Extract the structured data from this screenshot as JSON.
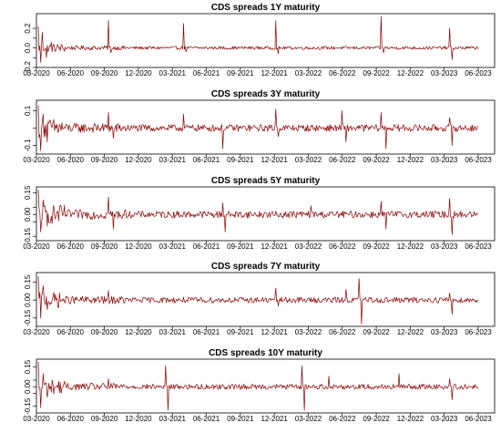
{
  "chart_data": [
    {
      "type": "line",
      "title": "CDS spreads 1Y maturity",
      "xlabel": "",
      "ylabel": "",
      "ylim": [
        -0.2,
        0.35
      ],
      "yticks": [
        -0.2,
        -0.1,
        0.0,
        0.1,
        0.2
      ],
      "ytick_labels": [
        "-0.2",
        "",
        "0.0",
        "",
        "0.2"
      ],
      "xticks": [
        "03-2020",
        "06-2020",
        "09-2020",
        "12-2020",
        "03-2021",
        "06-2021",
        "09-2021",
        "12-2021",
        "03-2022",
        "06-2022",
        "09-2022",
        "12-2022",
        "03-2023",
        "06-2023"
      ],
      "grid": false,
      "series_color": "#8b0000",
      "baseline_noise": 0.02,
      "spikes": [
        [
          0.0,
          0.22
        ],
        [
          0.005,
          -0.15
        ],
        [
          0.01,
          0.16
        ],
        [
          0.018,
          -0.1
        ],
        [
          0.03,
          0.06
        ],
        [
          0.16,
          0.28
        ],
        [
          0.165,
          -0.05
        ],
        [
          0.33,
          0.25
        ],
        [
          0.336,
          -0.04
        ],
        [
          0.54,
          0.28
        ],
        [
          0.545,
          -0.06
        ],
        [
          0.78,
          0.32
        ],
        [
          0.785,
          -0.05
        ],
        [
          0.935,
          0.2
        ],
        [
          0.94,
          -0.12
        ]
      ]
    },
    {
      "type": "line",
      "title": "CDS spreads 3Y maturity",
      "xlabel": "",
      "ylabel": "",
      "ylim": [
        -0.15,
        0.16
      ],
      "yticks": [
        -0.1,
        0.0,
        0.1
      ],
      "ytick_labels": [
        "-0.1",
        "",
        "0.1"
      ],
      "xticks": [
        "03-2020",
        "06-2020",
        "09-2020",
        "12-2020",
        "03-2021",
        "06-2021",
        "09-2021",
        "12-2021",
        "03-2022",
        "06-2022",
        "09-2022",
        "12-2022",
        "03-2023",
        "06-2023"
      ],
      "grid": false,
      "series_color": "#8b0000",
      "baseline_noise": 0.025,
      "spikes": [
        [
          0.0,
          0.13
        ],
        [
          0.005,
          -0.13
        ],
        [
          0.012,
          0.08
        ],
        [
          0.02,
          -0.08
        ],
        [
          0.16,
          0.09
        ],
        [
          0.17,
          -0.06
        ],
        [
          0.33,
          0.08
        ],
        [
          0.42,
          -0.12
        ],
        [
          0.54,
          0.11
        ],
        [
          0.545,
          -0.05
        ],
        [
          0.69,
          0.1
        ],
        [
          0.7,
          -0.08
        ],
        [
          0.78,
          0.09
        ],
        [
          0.79,
          -0.12
        ],
        [
          0.935,
          0.06
        ],
        [
          0.94,
          -0.1
        ]
      ]
    },
    {
      "type": "line",
      "title": "CDS spreads 5Y maturity",
      "xlabel": "",
      "ylabel": "",
      "ylim": [
        -0.18,
        0.19
      ],
      "yticks": [
        -0.15,
        -0.05,
        0.0,
        0.05,
        0.15
      ],
      "ytick_labels": [
        "-0.15",
        "",
        "0.00",
        "",
        "0.15"
      ],
      "xticks": [
        "03-2020",
        "06-2020",
        "09-2020",
        "12-2020",
        "03-2021",
        "06-2021",
        "09-2021",
        "12-2021",
        "03-2022",
        "06-2022",
        "09-2022",
        "12-2022",
        "03-2023",
        "06-2023"
      ],
      "grid": false,
      "series_color": "#8b0000",
      "baseline_noise": 0.03,
      "spikes": [
        [
          0.0,
          0.17
        ],
        [
          0.005,
          -0.12
        ],
        [
          0.012,
          0.1
        ],
        [
          0.02,
          -0.08
        ],
        [
          0.16,
          0.12
        ],
        [
          0.17,
          -0.1
        ],
        [
          0.42,
          0.08
        ],
        [
          0.425,
          -0.12
        ],
        [
          0.62,
          0.06
        ],
        [
          0.78,
          0.09
        ],
        [
          0.79,
          -0.1
        ],
        [
          0.935,
          0.11
        ],
        [
          0.94,
          -0.14
        ]
      ]
    },
    {
      "type": "line",
      "title": "CDS spreads 7Y maturity",
      "xlabel": "",
      "ylabel": "",
      "ylim": [
        -0.22,
        0.23
      ],
      "yticks": [
        -0.15,
        0.0,
        0.15
      ],
      "ytick_labels": [
        "-0.15",
        "0.00",
        "0.15"
      ],
      "xticks": [
        "03-2020",
        "06-2020",
        "09-2020",
        "12-2020",
        "03-2021",
        "06-2021",
        "09-2021",
        "12-2021",
        "03-2022",
        "06-2022",
        "09-2022",
        "12-2022",
        "03-2023",
        "06-2023"
      ],
      "grid": false,
      "series_color": "#8b0000",
      "baseline_noise": 0.03,
      "spikes": [
        [
          0.0,
          0.2
        ],
        [
          0.005,
          -0.15
        ],
        [
          0.012,
          0.12
        ],
        [
          0.02,
          -0.08
        ],
        [
          0.16,
          0.08
        ],
        [
          0.54,
          0.1
        ],
        [
          0.545,
          -0.05
        ],
        [
          0.7,
          0.09
        ],
        [
          0.73,
          0.18
        ],
        [
          0.735,
          -0.2
        ],
        [
          0.935,
          0.06
        ],
        [
          0.94,
          -0.12
        ]
      ]
    },
    {
      "type": "line",
      "title": "CDS spreads 10Y maturity",
      "xlabel": "",
      "ylabel": "",
      "ylim": [
        -0.2,
        0.21
      ],
      "yticks": [
        -0.15,
        -0.05,
        0.0,
        0.05,
        0.15
      ],
      "ytick_labels": [
        "-0.15",
        "",
        "0.00",
        "",
        "0.15"
      ],
      "xticks": [
        "03-2020",
        "06-2020",
        "09-2020",
        "12-2020",
        "03-2021",
        "06-2021",
        "09-2021",
        "12-2021",
        "03-2022",
        "06-2022",
        "09-2022",
        "12-2022",
        "03-2023",
        "06-2023"
      ],
      "grid": false,
      "series_color": "#8b0000",
      "baseline_noise": 0.025,
      "spikes": [
        [
          0.0,
          0.19
        ],
        [
          0.005,
          -0.16
        ],
        [
          0.012,
          0.1
        ],
        [
          0.02,
          -0.08
        ],
        [
          0.16,
          0.06
        ],
        [
          0.29,
          0.16
        ],
        [
          0.295,
          -0.18
        ],
        [
          0.6,
          0.16
        ],
        [
          0.605,
          -0.18
        ],
        [
          0.66,
          0.08
        ],
        [
          0.82,
          0.1
        ],
        [
          0.935,
          0.06
        ],
        [
          0.94,
          -0.1
        ]
      ]
    }
  ]
}
